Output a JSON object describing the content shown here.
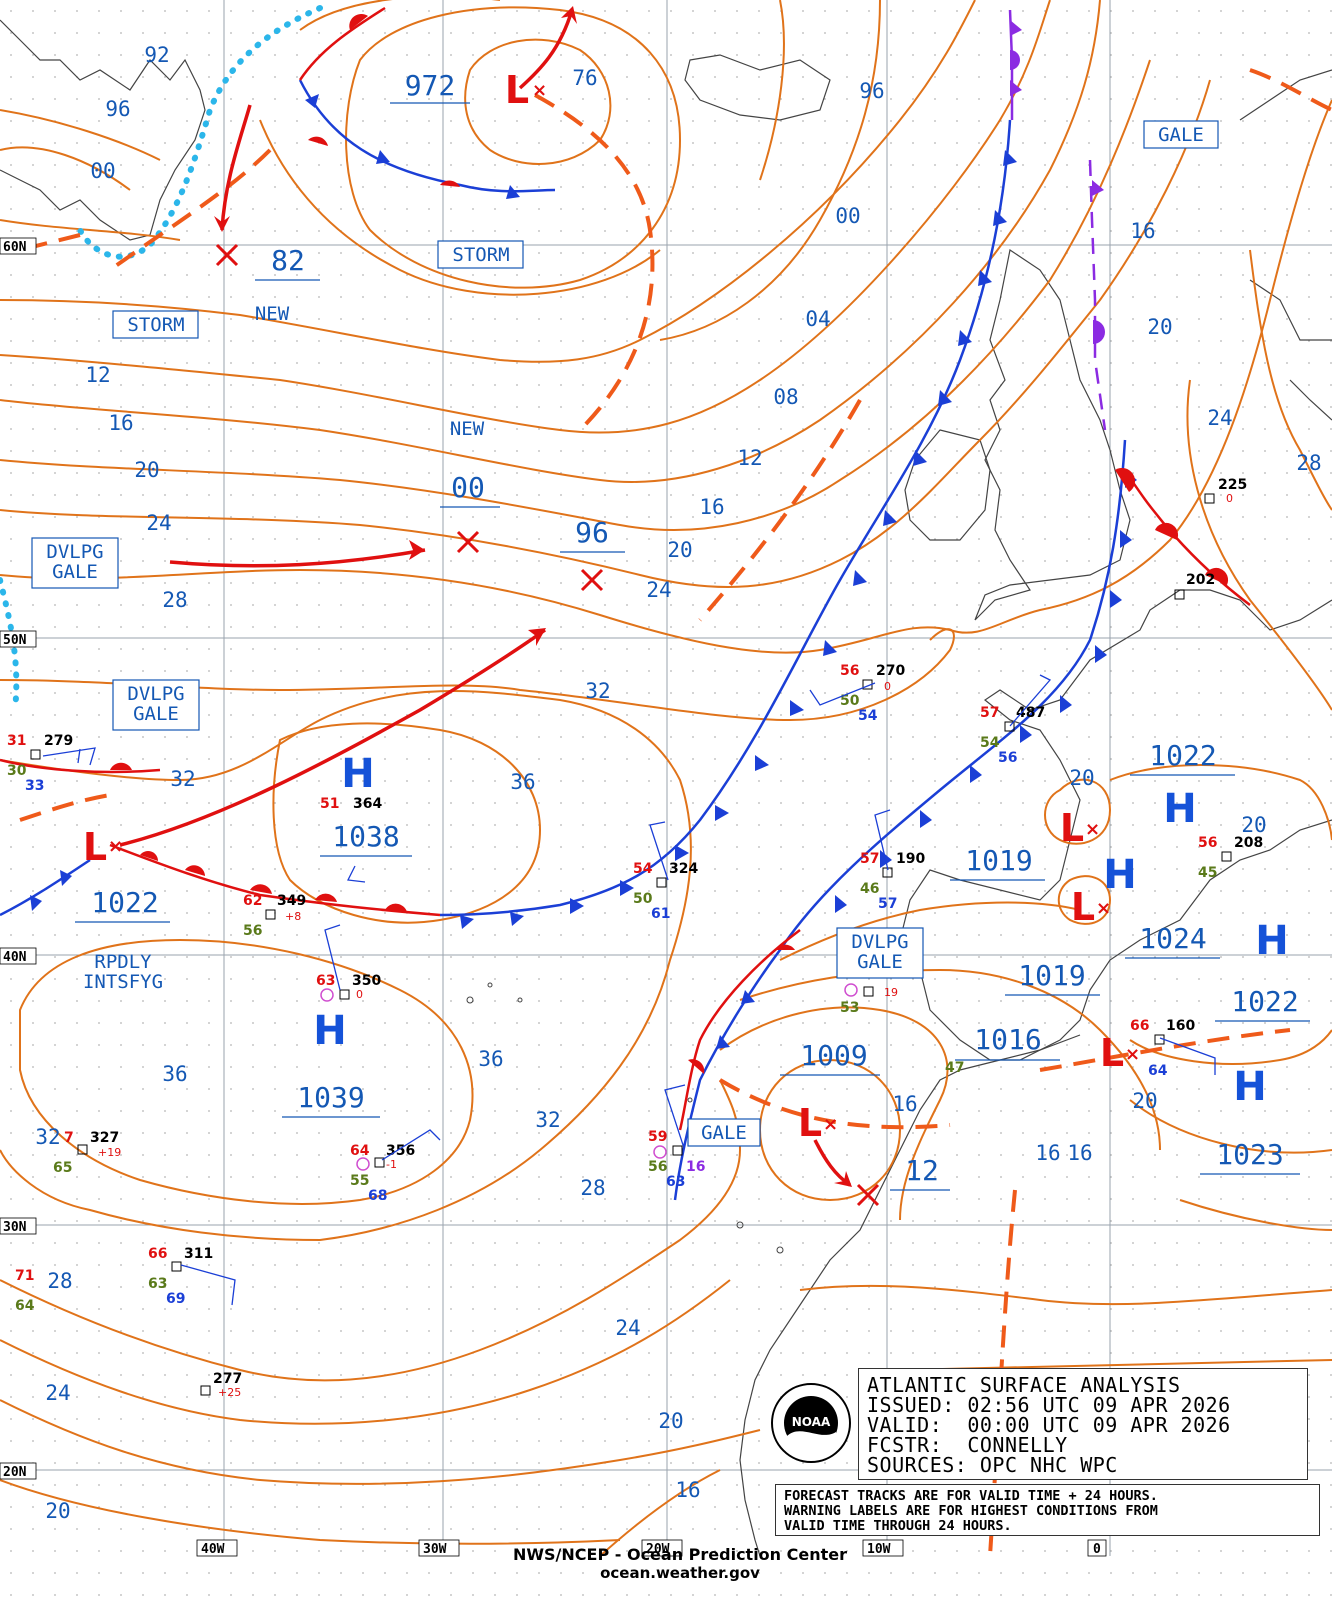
{
  "title_box": {
    "line1": "ATLANTIC SURFACE ANALYSIS",
    "line2": "ISSUED: 02:56 UTC 09 APR 2026",
    "line3": "VALID:  00:00 UTC 09 APR 2026",
    "line4": "FCSTR:  CONNELLY",
    "line5": "SOURCES: OPC NHC WPC"
  },
  "notes": {
    "line1": "FORECAST TRACKS ARE FOR VALID TIME + 24 HOURS.",
    "line2": "WARNING LABELS ARE FOR HIGHEST CONDITIONS FROM",
    "line3": "VALID TIME THROUGH 24 HOURS."
  },
  "credit": {
    "line1": "NWS/NCEP - Ocean Prediction Center",
    "line2": "ocean.weather.gov"
  },
  "logo_text": "NOAA",
  "latitudes": [
    "60N",
    "50N",
    "40N",
    "30N",
    "20N"
  ],
  "longitudes": [
    "40W",
    "30W",
    "20W",
    "10W",
    "0"
  ],
  "pressure_systems": [
    {
      "type": "L",
      "pressure": "972"
    },
    {
      "type": "L",
      "pressure": "1022"
    },
    {
      "type": "L",
      "pressure": "1009"
    },
    {
      "type": "L",
      "pressure": ""
    },
    {
      "type": "L",
      "pressure": ""
    },
    {
      "type": "L",
      "pressure": "1016"
    },
    {
      "type": "H",
      "pressure": "1038"
    },
    {
      "type": "H",
      "pressure": "1039"
    },
    {
      "type": "H",
      "pressure": "1022"
    },
    {
      "type": "H",
      "pressure": "1019"
    },
    {
      "type": "H",
      "pressure": "1024"
    },
    {
      "type": "H",
      "pressure": "1022"
    },
    {
      "type": "H",
      "pressure": "1023"
    },
    {
      "type": "H",
      "pressure": "1019"
    }
  ],
  "forecast_positions": [
    "82",
    "00",
    "96",
    "12"
  ],
  "new_labels": [
    "NEW",
    "NEW"
  ],
  "warnings": [
    {
      "text": "STORM"
    },
    {
      "text": "STORM"
    },
    {
      "text": "GALE"
    },
    {
      "text": "DVLPG GALE",
      "line1": "DVLPG",
      "line2": "GALE"
    },
    {
      "text": "DVLPG GALE",
      "line1": "DVLPG",
      "line2": "GALE"
    },
    {
      "text": "DVLPG GALE",
      "line1": "DVLPG",
      "line2": "GALE"
    },
    {
      "text": "GALE"
    }
  ],
  "rapid_label": {
    "line1": "RPDLY",
    "line2": "INTSFYG"
  },
  "isobar_labels": [
    "92",
    "96",
    "00",
    "12",
    "16",
    "20",
    "24",
    "28",
    "32",
    "32",
    "36",
    "36",
    "36",
    "32",
    "28",
    "24",
    "20",
    "16",
    "76",
    "96",
    "00",
    "04",
    "08",
    "12",
    "16",
    "20",
    "24",
    "32",
    "16",
    "20",
    "24",
    "28",
    "20",
    "20",
    "16",
    "20",
    "28",
    "24",
    "20",
    "16",
    "16",
    "12"
  ],
  "station_obs": [
    {
      "temp": "31",
      "pres": "279",
      "dew": "30",
      "vis": "33"
    },
    {
      "temp": "51",
      "pres": "364"
    },
    {
      "temp": "62",
      "pres": "349",
      "dew": "56",
      "tend": "+8"
    },
    {
      "temp": "63",
      "pres": "350",
      "tend": "0"
    },
    {
      "temp": "7",
      "pres": "327",
      "dew": "65",
      "tend": "+19"
    },
    {
      "temp": "64",
      "pres": "356",
      "dew": "55",
      "vis": "68",
      "tend": "-1"
    },
    {
      "temp": "66",
      "pres": "311",
      "dew": "63",
      "vis": "69"
    },
    {
      "temp": "71",
      "dew": "64"
    },
    {
      "pres": "277",
      "tend": "+25"
    },
    {
      "temp": "54",
      "pres": "324",
      "dew": "50",
      "vis": "61"
    },
    {
      "temp": "59",
      "dew": "56",
      "vis": "63",
      "extra": "16"
    },
    {
      "temp": "56",
      "pres": "270",
      "dew": "50",
      "vis": "54",
      "tend": "0"
    },
    {
      "temp": "57",
      "pres": "487",
      "dew": "54",
      "vis": "56"
    },
    {
      "temp": "57",
      "pres": "190",
      "dew": "46",
      "vis": "57"
    },
    {
      "temp": "66",
      "pres": "160",
      "vis": "64"
    },
    {
      "temp": "56",
      "pres": "208",
      "dew": "45"
    },
    {
      "pres": "225",
      "tend": "0"
    },
    {
      "pres": "202"
    },
    {
      "dew": "53",
      "tend": "19"
    },
    {
      "dew": "47"
    }
  ],
  "colors": {
    "isobar": "#e0731a",
    "label_blue": "#1458b4",
    "cold_front": "#1b3fd6",
    "warm_front": "#e01010",
    "occluded": "#8b2be2",
    "trough": "#ef5a1a",
    "ice": "#2bb6ea",
    "high": "#1552d8",
    "low": "#e01010"
  }
}
